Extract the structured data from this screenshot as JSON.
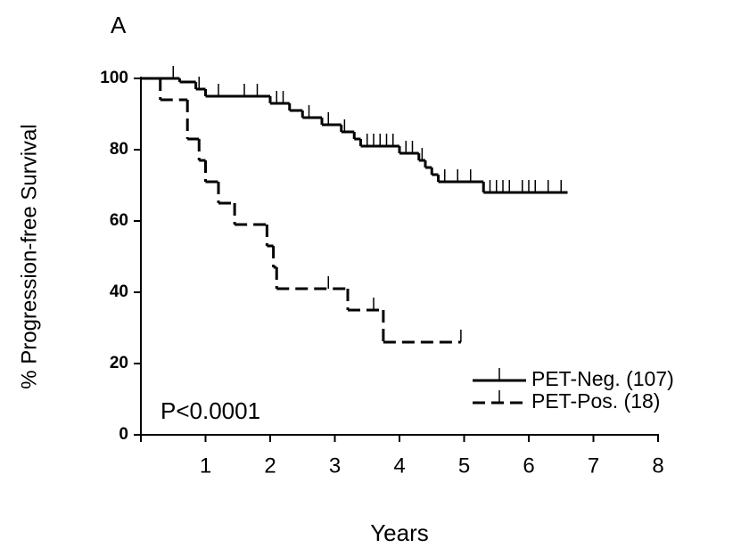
{
  "chart_data": {
    "type": "km",
    "panel_label": "A",
    "x_label": "Years",
    "y_label": "% Progression-free Survival",
    "annotation": "P<0.0001",
    "xlim": [
      0,
      8
    ],
    "xticks": [
      1,
      2,
      3,
      4,
      5,
      6,
      7,
      8
    ],
    "ylim": [
      0,
      100
    ],
    "yticks": [
      0,
      20,
      40,
      60,
      80,
      100
    ],
    "series": [
      {
        "name": "PET-Neg. (107)",
        "color": "#000000",
        "dash": false,
        "x": [
          0,
          0.6,
          0.85,
          1.0,
          2.0,
          2.3,
          2.5,
          2.8,
          3.1,
          3.3,
          3.4,
          4.0,
          4.3,
          4.4,
          4.5,
          4.6,
          5.3,
          6.6
        ],
        "values": [
          100,
          99,
          97,
          95,
          93,
          91,
          89,
          87,
          85,
          83,
          81,
          79,
          77,
          75,
          73,
          71,
          68,
          68
        ],
        "censored": [
          0.5,
          0.9,
          1.2,
          1.6,
          1.8,
          2.1,
          2.2,
          2.6,
          2.9,
          3.15,
          3.5,
          3.6,
          3.7,
          3.8,
          3.9,
          4.1,
          4.2,
          4.35,
          4.7,
          4.9,
          5.1,
          5.4,
          5.5,
          5.6,
          5.7,
          5.9,
          6.0,
          6.1,
          6.3,
          6.5
        ]
      },
      {
        "name": "PET-Pos. (18)",
        "color": "#000000",
        "dash": true,
        "x": [
          0,
          0.3,
          0.72,
          0.9,
          1.0,
          1.2,
          1.45,
          1.95,
          2.05,
          2.1,
          3.2,
          3.75,
          4.95
        ],
        "values": [
          100,
          94,
          83,
          77,
          71,
          65,
          59,
          53,
          47,
          41,
          35,
          26,
          26
        ],
        "censored": [
          2.9,
          3.6,
          4.95
        ]
      }
    ]
  }
}
